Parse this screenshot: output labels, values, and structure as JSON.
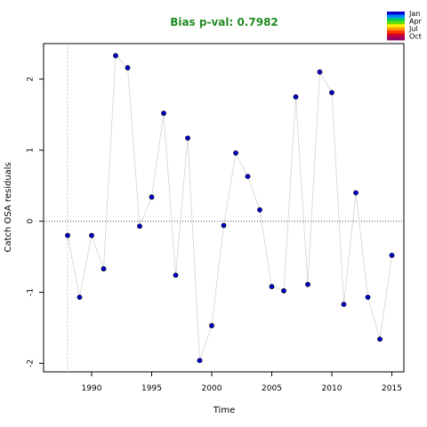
{
  "chart_data": {
    "type": "scatter",
    "title": "Bias p-val: 0.7982",
    "xlabel": "Time",
    "ylabel": "Catch OSA residuals",
    "xlim": [
      1986,
      2016
    ],
    "ylim": [
      -2.12,
      2.5
    ],
    "xticks": [
      1990,
      1995,
      2000,
      2005,
      2010,
      2015
    ],
    "yticks": [
      -2,
      -1,
      0,
      1,
      2
    ],
    "grid": false,
    "reference_line_y": 0,
    "reference_line_x": 1988,
    "legend_position": "top-right",
    "series": [
      {
        "x": [
          1988,
          1989,
          1990,
          1991,
          1992,
          1993,
          1994,
          1995,
          1996,
          1997,
          1998,
          1999,
          2000,
          2001,
          2002,
          2003,
          2004,
          2005,
          2006,
          2007,
          2008,
          2009,
          2010,
          2011,
          2012,
          2013,
          2014,
          2015
        ],
        "y": [
          -0.2,
          -1.07,
          -0.2,
          -0.67,
          2.33,
          2.16,
          -0.07,
          0.34,
          1.52,
          -0.76,
          1.17,
          -1.96,
          -1.47,
          -0.06,
          0.96,
          0.63,
          0.16,
          -0.92,
          -0.98,
          1.75,
          -0.89,
          2.1,
          1.81,
          -1.17,
          0.4,
          -1.07,
          -1.66,
          -0.48
        ]
      }
    ],
    "legend_labels": [
      "Jan",
      "Apr",
      "Jul",
      "Oct"
    ],
    "colors": {
      "title": "#228B22",
      "point_fill": "#0000CD",
      "point_stroke": "#000000",
      "line": "#D3D3D3",
      "reference": "#555555",
      "legend_gradient": [
        "#0000CD",
        "#0088FF",
        "#00CC66",
        "#66DD00",
        "#FFEE00",
        "#FF9900",
        "#FF3300",
        "#CC0033",
        "#990066"
      ]
    }
  }
}
